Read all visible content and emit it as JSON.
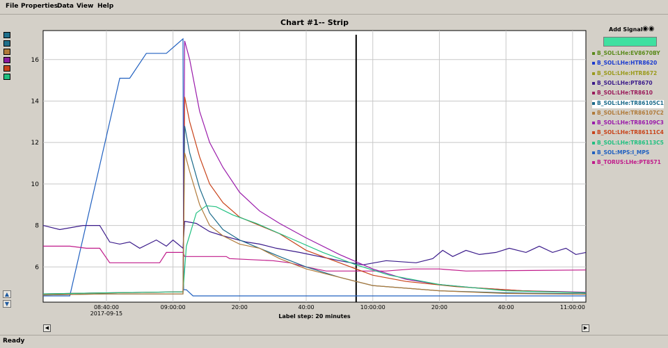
{
  "menu": [
    "File",
    "Properties",
    "Data",
    "View",
    "Help"
  ],
  "status": "Ready",
  "right_panel": {
    "add_signal_label": "Add Signal"
  },
  "left_swatches": [
    "#1f6f8b",
    "#1f6f8b",
    "#b07a3a",
    "#8b1a9c",
    "#c8431a",
    "#20c080"
  ],
  "chart_data": {
    "type": "line",
    "title": "Chart #1-- Strip",
    "xlabel": "Label step: 20 minutes",
    "x_ticks": [
      {
        "label": "08:40:00",
        "sub": "2017-09-15",
        "min": 520
      },
      {
        "label": "09:00:00",
        "min": 540
      },
      {
        "label": "20:00",
        "min": 560
      },
      {
        "label": "40:00",
        "min": 580
      },
      {
        "label": "10:00:00",
        "min": 600
      },
      {
        "label": "20:00",
        "min": 620
      },
      {
        "label": "40:00",
        "min": 640
      },
      {
        "label": "11:00:00",
        "min": 660
      }
    ],
    "xlim": [
      501,
      664
    ],
    "ylim": [
      4.3,
      17.4
    ],
    "y_ticks": [
      6,
      8,
      10,
      12,
      14,
      16
    ],
    "grid": true,
    "cursor_min": 595,
    "legend": [
      {
        "name": "B_SOL:LHe:EV8670BY",
        "color": "#5a8a1a"
      },
      {
        "name": "B_SOL:LHe:HTR8620",
        "color": "#1a3ad0"
      },
      {
        "name": "B_SOL:LHe:HTR8672",
        "color": "#9a9a1a"
      },
      {
        "name": "B_SOL:LHe:PT8670",
        "color": "#3a1a8a"
      },
      {
        "name": "B_SOL:LHe:TR8610",
        "color": "#9a1a5a"
      },
      {
        "name": "B_SOL:LHe:TR86105C1",
        "color": "#1a6a8a"
      },
      {
        "name": "B_SOL:LHe:TR86107C2",
        "color": "#b07a3a"
      },
      {
        "name": "B_SOL:LHe:TR86109C3",
        "color": "#9a1aaa"
      },
      {
        "name": "B_SOL:LHe:TR86111C4",
        "color": "#c8431a"
      },
      {
        "name": "B_SOL:LHe:TR86113C5",
        "color": "#20c080"
      },
      {
        "name": "B_SOL:MPS:I_MPS",
        "color": "#2060c0"
      },
      {
        "name": "B_TORUS:LHe:PT8571",
        "color": "#c01a8a"
      }
    ],
    "series": [
      {
        "name": "B_SOL:MPS:I_MPS",
        "color": "#2060c0",
        "points": [
          [
            501,
            4.6
          ],
          [
            506,
            4.6
          ],
          [
            509,
            4.6
          ],
          [
            524,
            15.1
          ],
          [
            527,
            15.1
          ],
          [
            532,
            16.3
          ],
          [
            538,
            16.3
          ],
          [
            543,
            17.0
          ],
          [
            543.2,
            4.9
          ],
          [
            544,
            4.9
          ],
          [
            546,
            4.6
          ],
          [
            664,
            4.6
          ]
        ]
      },
      {
        "name": "B_SOL:LHe:PT8670",
        "color": "#3a1a8a",
        "points": [
          [
            501,
            8.0
          ],
          [
            506,
            7.8
          ],
          [
            513,
            8.0
          ],
          [
            518,
            8.0
          ],
          [
            521,
            7.2
          ],
          [
            524,
            7.1
          ],
          [
            527,
            7.2
          ],
          [
            530,
            6.9
          ],
          [
            535,
            7.3
          ],
          [
            538,
            7.0
          ],
          [
            540,
            7.3
          ],
          [
            543,
            6.9
          ],
          [
            543.5,
            8.2
          ],
          [
            547,
            8.1
          ],
          [
            551,
            7.7
          ],
          [
            555,
            7.5
          ],
          [
            562,
            7.2
          ],
          [
            566,
            7.1
          ],
          [
            571,
            6.9
          ],
          [
            578,
            6.7
          ],
          [
            590,
            6.3
          ],
          [
            597,
            6.1
          ],
          [
            604,
            6.3
          ],
          [
            613,
            6.2
          ],
          [
            618,
            6.4
          ],
          [
            621,
            6.8
          ],
          [
            624,
            6.5
          ],
          [
            628,
            6.8
          ],
          [
            632,
            6.6
          ],
          [
            637,
            6.7
          ],
          [
            641,
            6.9
          ],
          [
            646,
            6.7
          ],
          [
            650,
            7.0
          ],
          [
            654,
            6.7
          ],
          [
            658,
            6.9
          ],
          [
            661,
            6.6
          ],
          [
            664,
            6.7
          ]
        ]
      },
      {
        "name": "B_TORUS:LHe:PT8571",
        "color": "#c01a8a",
        "points": [
          [
            501,
            7.0
          ],
          [
            506,
            7.0
          ],
          [
            509,
            7.0
          ],
          [
            514,
            6.9
          ],
          [
            518,
            6.9
          ],
          [
            521,
            6.2
          ],
          [
            536,
            6.2
          ],
          [
            538,
            6.7
          ],
          [
            543,
            6.7
          ],
          [
            543.5,
            6.5
          ],
          [
            556,
            6.5
          ],
          [
            557,
            6.4
          ],
          [
            570,
            6.3
          ],
          [
            575,
            6.2
          ],
          [
            580,
            6.0
          ],
          [
            586,
            5.8
          ],
          [
            604,
            5.8
          ],
          [
            612,
            5.9
          ],
          [
            620,
            5.9
          ],
          [
            628,
            5.8
          ],
          [
            664,
            5.85
          ]
        ]
      },
      {
        "name": "B_SOL:LHe:TR86109C3",
        "color": "#9a1aaa",
        "points": [
          [
            501,
            4.7
          ],
          [
            520,
            4.75
          ],
          [
            543,
            4.8
          ],
          [
            543.5,
            16.9
          ],
          [
            545,
            16.0
          ],
          [
            548,
            13.5
          ],
          [
            551,
            12.0
          ],
          [
            555,
            10.8
          ],
          [
            560,
            9.6
          ],
          [
            566,
            8.7
          ],
          [
            572,
            8.1
          ],
          [
            580,
            7.4
          ],
          [
            590,
            6.6
          ],
          [
            600,
            5.9
          ],
          [
            610,
            5.4
          ],
          [
            620,
            5.15
          ],
          [
            630,
            5.0
          ],
          [
            645,
            4.85
          ],
          [
            664,
            4.78
          ]
        ]
      },
      {
        "name": "B_SOL:LHe:TR86111C4",
        "color": "#c8431a",
        "points": [
          [
            501,
            4.7
          ],
          [
            520,
            4.75
          ],
          [
            543,
            4.8
          ],
          [
            543.5,
            14.2
          ],
          [
            545,
            13.0
          ],
          [
            548,
            11.3
          ],
          [
            551,
            10.0
          ],
          [
            555,
            9.1
          ],
          [
            560,
            8.4
          ],
          [
            566,
            8.0
          ],
          [
            572,
            7.6
          ],
          [
            580,
            6.8
          ],
          [
            590,
            6.2
          ],
          [
            600,
            5.6
          ],
          [
            610,
            5.3
          ],
          [
            625,
            5.05
          ],
          [
            645,
            4.85
          ],
          [
            664,
            4.75
          ]
        ]
      },
      {
        "name": "B_SOL:LHe:TR86105C1",
        "color": "#1a6a8a",
        "points": [
          [
            501,
            4.65
          ],
          [
            520,
            4.7
          ],
          [
            543,
            4.7
          ],
          [
            543.5,
            12.8
          ],
          [
            545,
            11.5
          ],
          [
            548,
            9.8
          ],
          [
            551,
            8.6
          ],
          [
            555,
            7.8
          ],
          [
            560,
            7.3
          ],
          [
            566,
            6.9
          ],
          [
            572,
            6.5
          ],
          [
            580,
            6.0
          ],
          [
            590,
            5.5
          ],
          [
            600,
            5.1
          ],
          [
            620,
            4.85
          ],
          [
            640,
            4.75
          ],
          [
            664,
            4.7
          ]
        ]
      },
      {
        "name": "B_SOL:LHe:TR86113C5",
        "color": "#20c080",
        "points": [
          [
            501,
            4.7
          ],
          [
            520,
            4.75
          ],
          [
            543,
            4.8
          ],
          [
            544,
            7.0
          ],
          [
            547,
            8.6
          ],
          [
            550,
            8.95
          ],
          [
            553,
            8.9
          ],
          [
            558,
            8.5
          ],
          [
            565,
            8.1
          ],
          [
            575,
            7.4
          ],
          [
            585,
            6.7
          ],
          [
            595,
            6.1
          ],
          [
            605,
            5.6
          ],
          [
            620,
            5.15
          ],
          [
            640,
            4.85
          ],
          [
            664,
            4.75
          ]
        ]
      },
      {
        "name": "B_SOL:LHe:TR86107C2",
        "color": "#b07a3a",
        "points": [
          [
            501,
            4.65
          ],
          [
            520,
            4.7
          ],
          [
            543,
            4.7
          ],
          [
            543.5,
            11.5
          ],
          [
            545,
            10.6
          ],
          [
            548,
            9.0
          ],
          [
            551,
            8.0
          ],
          [
            555,
            7.5
          ],
          [
            560,
            7.1
          ],
          [
            566,
            6.9
          ],
          [
            572,
            6.4
          ],
          [
            580,
            5.9
          ],
          [
            590,
            5.5
          ],
          [
            600,
            5.1
          ],
          [
            620,
            4.85
          ],
          [
            640,
            4.72
          ],
          [
            664,
            4.68
          ]
        ]
      }
    ]
  }
}
